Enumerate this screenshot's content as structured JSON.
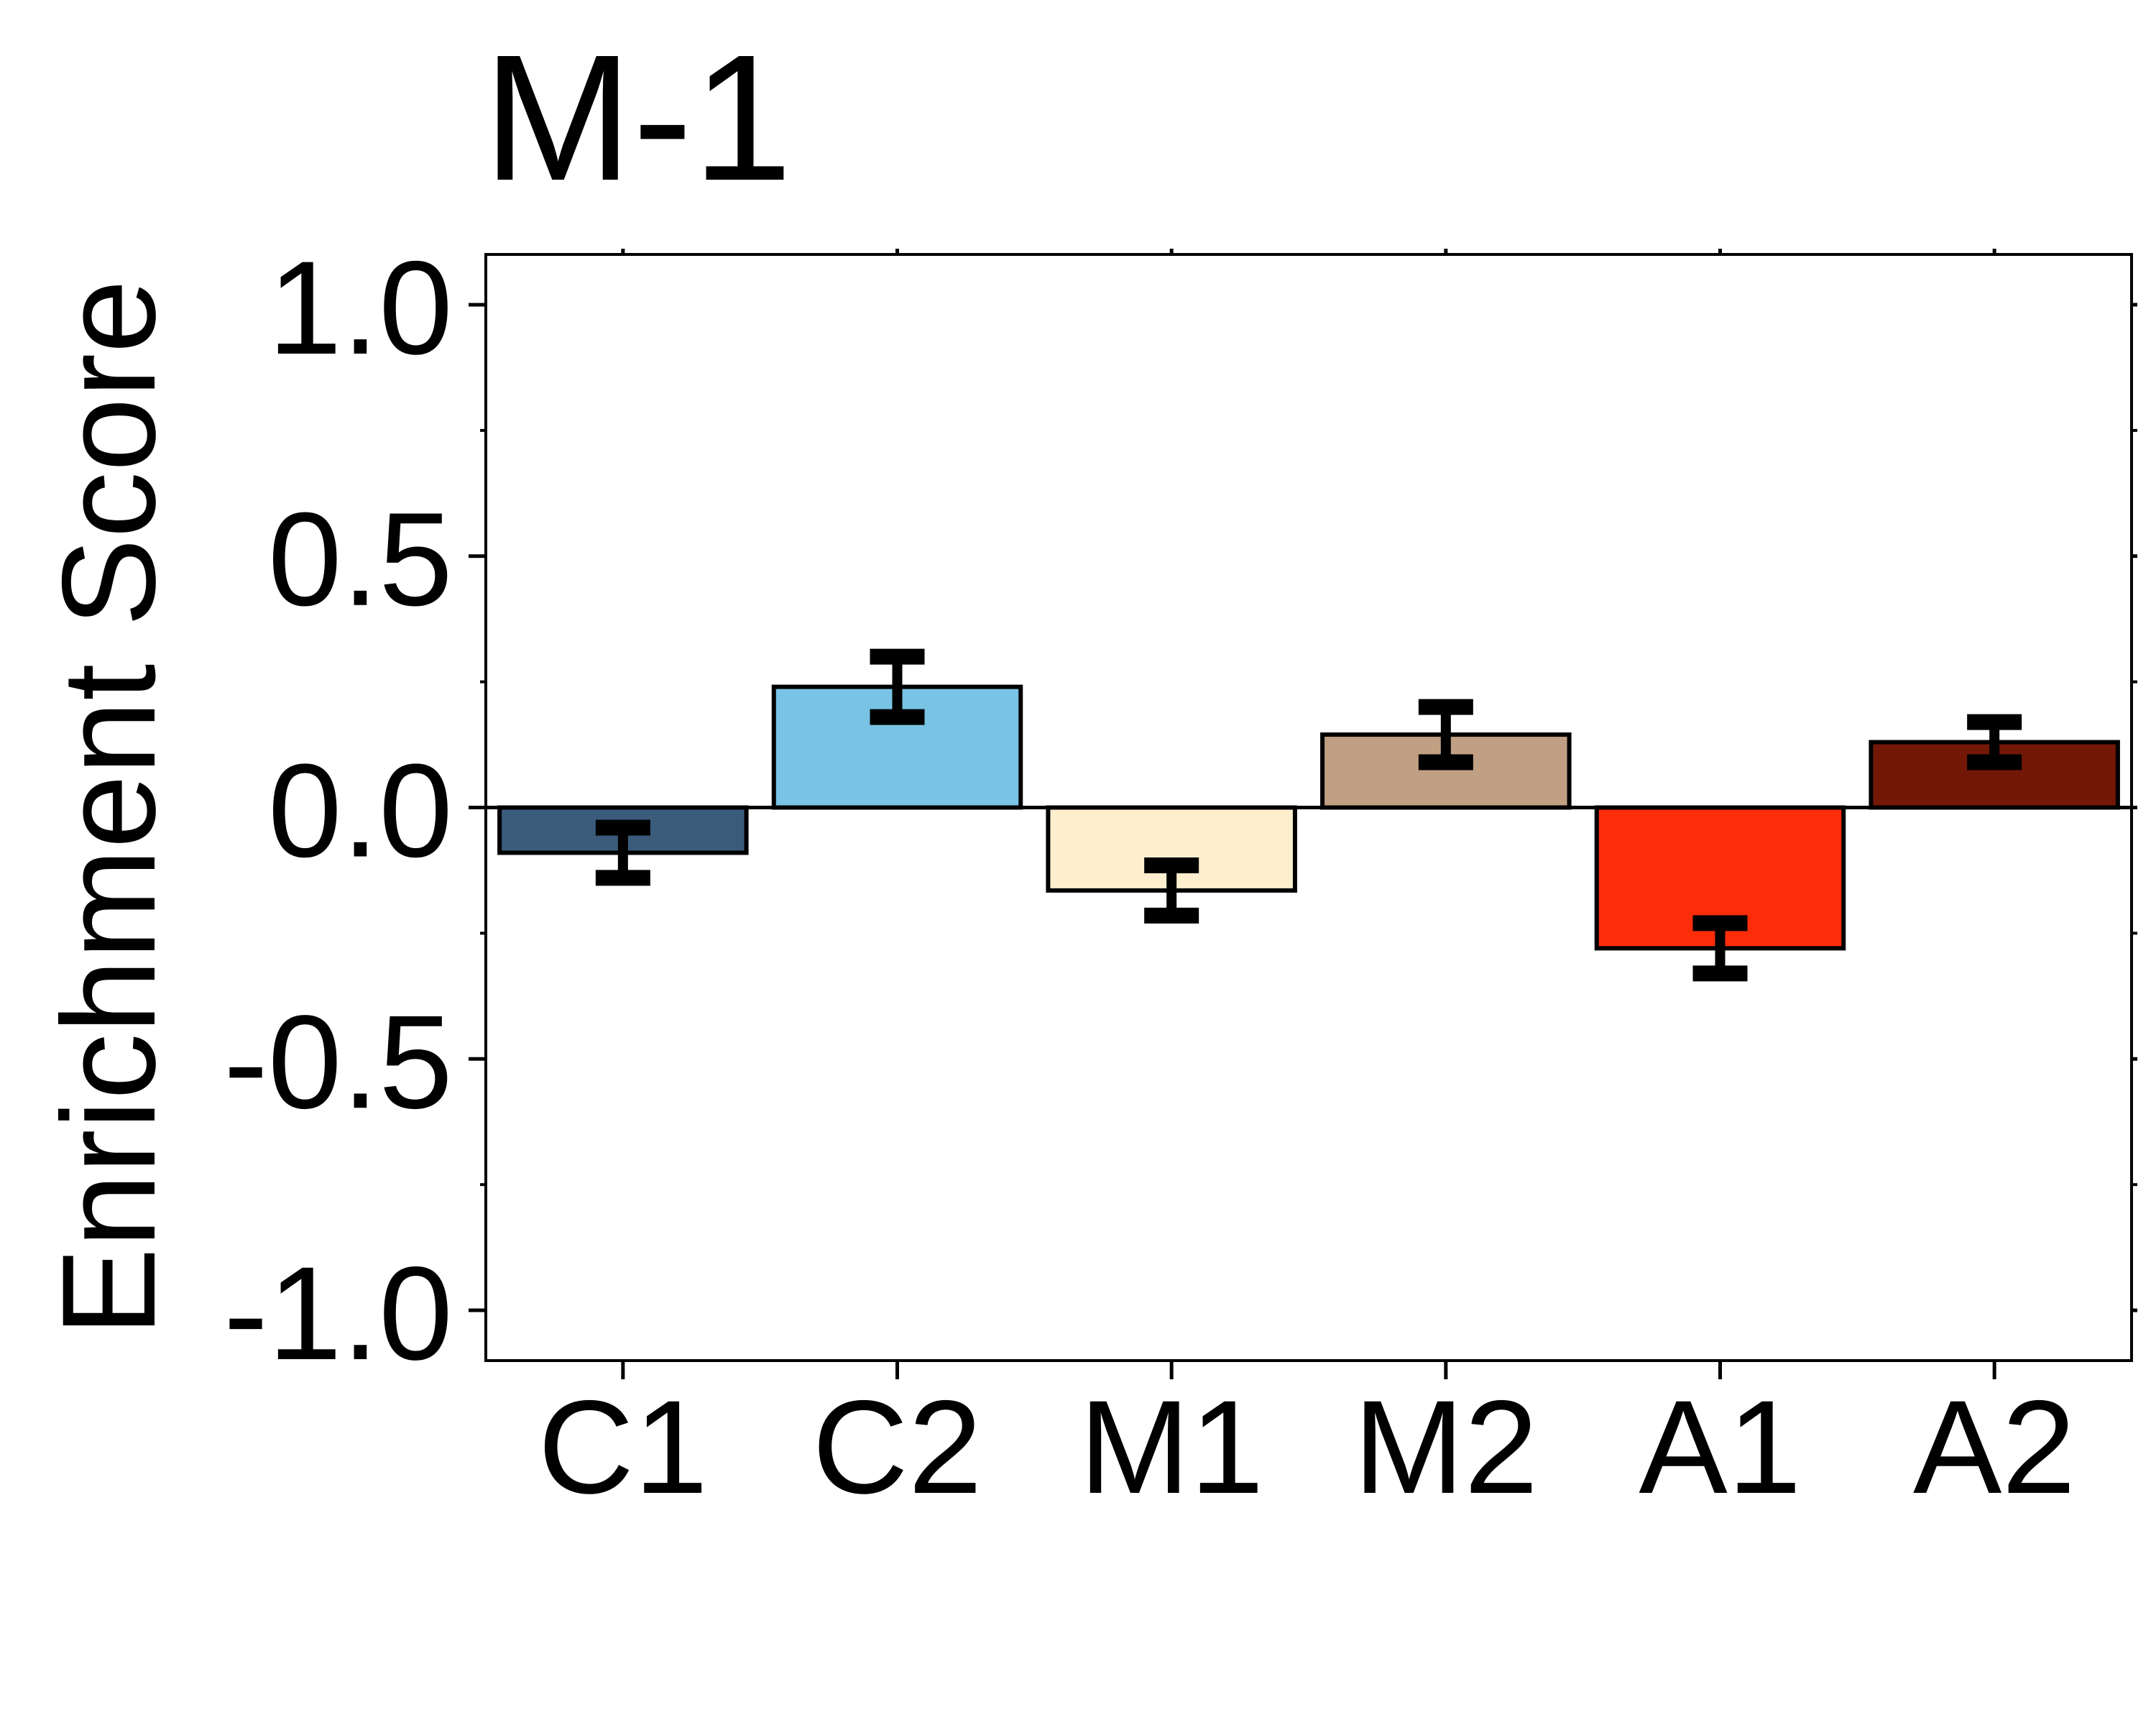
{
  "chart_data": {
    "type": "bar",
    "title": "M-1",
    "ylabel": "Enrichment Score",
    "xlabel": "",
    "categories": [
      "C1",
      "C2",
      "M1",
      "M2",
      "A1",
      "A2"
    ],
    "values": [
      -0.09,
      0.24,
      -0.165,
      0.145,
      -0.28,
      0.13
    ],
    "errors": [
      0.05,
      0.06,
      0.05,
      0.055,
      0.05,
      0.04
    ],
    "colors": [
      "#3b5b7a",
      "#79c3e5",
      "#fdefcd",
      "#c19f82",
      "#fd2d09",
      "#731707"
    ],
    "ylim": [
      -1.1,
      1.1
    ],
    "yticks": [
      -1.0,
      -0.5,
      0.0,
      0.5,
      1.0
    ],
    "ytick_labels": [
      "-1.0",
      "-0.5",
      "0.0",
      "0.5",
      "1.0"
    ],
    "grid": false,
    "legend": "none"
  }
}
